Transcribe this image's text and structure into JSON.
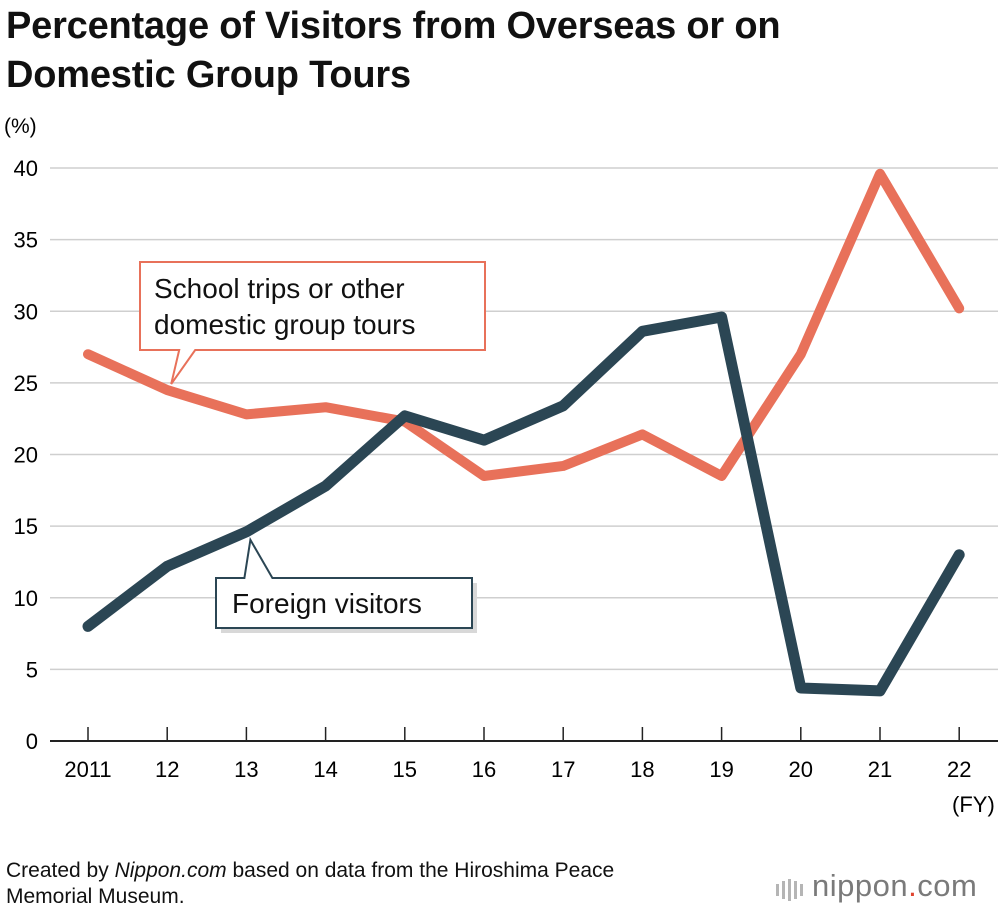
{
  "title": {
    "line1": "Percentage of Visitors from Overseas or on",
    "line2": "Domestic Group Tours"
  },
  "chart_data": {
    "type": "line",
    "title": "Percentage of Visitors from Overseas or on Domestic Group Tours",
    "ylabel": "(%)",
    "xlabel": "(FY)",
    "ylim": [
      0,
      40
    ],
    "yticks": [
      0,
      5,
      10,
      15,
      20,
      25,
      30,
      35,
      40
    ],
    "grid": true,
    "categories": [
      "2011",
      "12",
      "13",
      "14",
      "15",
      "16",
      "17",
      "18",
      "19",
      "20",
      "21",
      "22"
    ],
    "series": [
      {
        "name": "School trips or other domestic group tours",
        "color": "#e8715a",
        "values": [
          27.0,
          24.5,
          22.8,
          23.3,
          22.3,
          18.5,
          19.2,
          21.4,
          18.5,
          27.0,
          39.6,
          30.2
        ]
      },
      {
        "name": "Foreign visitors",
        "color": "#2b4654",
        "values": [
          8.0,
          12.2,
          14.6,
          17.8,
          22.7,
          21.0,
          23.4,
          28.6,
          29.6,
          3.7,
          3.5,
          13.0
        ]
      }
    ],
    "annotations": [
      {
        "label": "School trips or other domestic group tours",
        "lines": [
          "School trips or other",
          "domestic group tours"
        ],
        "series": 0
      },
      {
        "label": "Foreign visitors",
        "lines": [
          "Foreign visitors"
        ],
        "series": 1
      }
    ]
  },
  "footer": {
    "prefix": "Created by ",
    "source_italic": "Nippon.com",
    "suffix_line1": " based on data from the Hiroshima Peace",
    "line2": "Memorial Museum."
  },
  "logo": {
    "name": "nippon",
    "dot": ".",
    "tld": "com"
  }
}
